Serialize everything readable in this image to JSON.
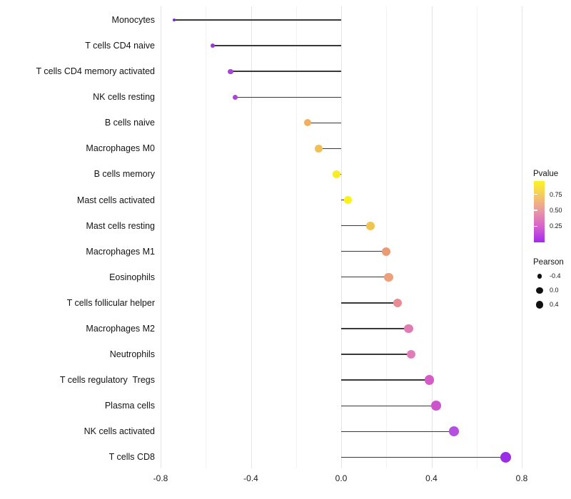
{
  "chart_data": {
    "type": "lollipop",
    "title": "",
    "xlabel": "",
    "ylabel": "",
    "xlim": [
      -0.81,
      0.83
    ],
    "grid": true,
    "x_ticks": [
      {
        "label": "-0.8",
        "value": -0.8
      },
      {
        "label": "-0.4",
        "value": -0.4
      },
      {
        "label": "0.0",
        "value": 0.0
      },
      {
        "label": "0.4",
        "value": 0.4
      },
      {
        "label": "0.8",
        "value": 0.8
      }
    ],
    "minor_ticks": [
      -0.6,
      -0.2,
      0.2,
      0.6
    ],
    "points": [
      {
        "label": "Monocytes",
        "pearson": -0.74,
        "color": "#7A2ACB"
      },
      {
        "label": "T cells CD4 naive",
        "pearson": -0.57,
        "color": "#9839D2"
      },
      {
        "label": "T cells CD4 memory activated",
        "pearson": -0.49,
        "color": "#A845D3"
      },
      {
        "label": "NK cells resting",
        "pearson": -0.47,
        "color": "#AB47D5"
      },
      {
        "label": "B cells naive",
        "pearson": -0.15,
        "color": "#F1AE5E"
      },
      {
        "label": "Macrophages M0",
        "pearson": -0.1,
        "color": "#F1C052"
      },
      {
        "label": "B cells memory",
        "pearson": -0.02,
        "color": "#F6ED26"
      },
      {
        "label": "Mast cells activated",
        "pearson": 0.03,
        "color": "#F9F31B"
      },
      {
        "label": "Mast cells resting",
        "pearson": 0.13,
        "color": "#EFC44F"
      },
      {
        "label": "Macrophages M1",
        "pearson": 0.2,
        "color": "#EB9B74"
      },
      {
        "label": "Eosinophils",
        "pearson": 0.21,
        "color": "#ECA07B"
      },
      {
        "label": "T cells follicular helper",
        "pearson": 0.25,
        "color": "#E78C92"
      },
      {
        "label": "Macrophages M2",
        "pearson": 0.3,
        "color": "#E07BB5"
      },
      {
        "label": "Neutrophils",
        "pearson": 0.31,
        "color": "#E07CB7"
      },
      {
        "label": "T cells regulatory  Tregs",
        "pearson": 0.39,
        "color": "#D65BC9"
      },
      {
        "label": "Plasma cells",
        "pearson": 0.42,
        "color": "#CC55CE"
      },
      {
        "label": "NK cells activated",
        "pearson": 0.5,
        "color": "#B44FE0"
      },
      {
        "label": "T cells CD8",
        "pearson": 0.73,
        "color": "#9B2CE8"
      }
    ],
    "legends": {
      "pvalue": {
        "title": "Pvalue",
        "ticks": [
          {
            "label": "0.75",
            "pos": 0.217
          },
          {
            "label": "0.50",
            "pos": 0.477
          },
          {
            "label": "0.25",
            "pos": 0.736
          }
        ],
        "gradient": [
          "#FBF425",
          "#F4C667",
          "#E895A6",
          "#D560CE",
          "#A32BEB"
        ],
        "legend_position": "right"
      },
      "pearson": {
        "title": "Pearson",
        "items": [
          {
            "label": "-0.4",
            "value": -0.4
          },
          {
            "label": "0.0",
            "value": 0.0
          },
          {
            "label": "0.4",
            "value": 0.4
          }
        ],
        "dot_color": "#111111",
        "legend_position": "right"
      }
    }
  }
}
